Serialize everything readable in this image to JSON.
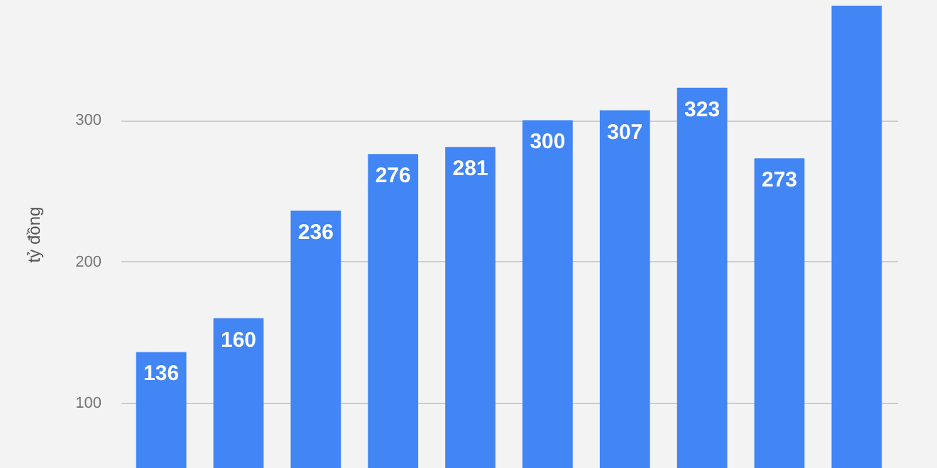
{
  "chart_data": {
    "type": "bar",
    "ylabel": "tỷ đồng",
    "categories": [
      null,
      null,
      null,
      null,
      null,
      null,
      null,
      null,
      null,
      null
    ],
    "values": [
      136,
      160,
      236,
      276,
      281,
      300,
      307,
      323,
      273,
      381
    ],
    "value_labels": [
      "136",
      "160",
      "236",
      "276",
      "281",
      "300",
      "307",
      "323",
      "273",
      null
    ],
    "color": "#4285f4",
    "ylim": [
      54,
      385
    ],
    "yticks": [
      100,
      200,
      300
    ],
    "grid": "y",
    "tick_labels": "y"
  }
}
